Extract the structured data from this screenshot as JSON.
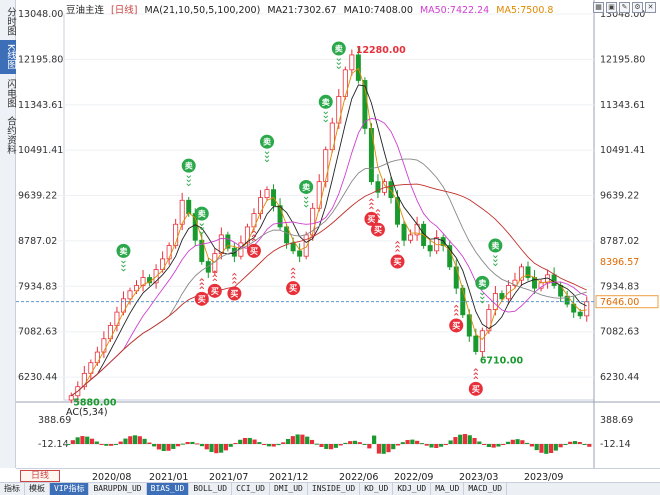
{
  "left_rail": {
    "tabs": [
      {
        "label": "分时图",
        "active": false
      },
      {
        "label": "K线图",
        "active": true
      },
      {
        "label": "闪电图",
        "active": false
      },
      {
        "label": "合约资料",
        "active": false
      }
    ]
  },
  "legend": {
    "symbol": "豆油主连",
    "period": "[日线]",
    "ma_params": "MA(21,10,50,5,100,200)",
    "ma21": "MA21:7302.67",
    "ma10": "MA10:7408.00",
    "ma50": "MA50:7422.24",
    "ma5": "MA5:7500.8"
  },
  "colors": {
    "up": "#e8303a",
    "down": "#1a9a2e",
    "ma21": "#222222",
    "ma10": "#222222",
    "ma50": "#d040d0",
    "ma5": "#e08a00",
    "ma100": "#888888",
    "ma200": "#c0302a",
    "sell_badge": "#2aa84a",
    "buy_badge": "#e8303a",
    "price_line": "#4a86c8",
    "current_price_box": "#f0a040"
  },
  "chart_data": {
    "type": "candlestick",
    "y_ticks": [
      "13048.00",
      "12195.80",
      "11343.61",
      "10491.41",
      "9639.22",
      "8787.02",
      "7934.83",
      "7082.63",
      "6230.44"
    ],
    "ylim": [
      5800,
      13048
    ],
    "x_ticks": [
      "2020/08",
      "2021/01",
      "2021/07",
      "2021/12",
      "2022/06",
      "2022/09",
      "2023/03",
      "2023/09"
    ],
    "annotations": {
      "high": {
        "label": "12280.00",
        "value": 12280
      },
      "low_2020": {
        "label": "5880.00",
        "value": 5880
      },
      "low_2023": {
        "label": "6710.00",
        "value": 6710
      },
      "ma_tag": {
        "label": "8396.57",
        "value": 8396.57
      },
      "current_price": {
        "label": "7646.00",
        "value": 7646
      }
    },
    "close_series": [
      5880,
      6050,
      6300,
      6500,
      6700,
      6950,
      7200,
      7450,
      7700,
      7850,
      7950,
      8100,
      8000,
      8250,
      8450,
      8700,
      9100,
      9550,
      9300,
      8800,
      8400,
      8200,
      8550,
      8900,
      8650,
      8500,
      8750,
      9050,
      9300,
      9600,
      9750,
      9450,
      9050,
      8750,
      8600,
      8500,
      8900,
      9400,
      9900,
      10500,
      11000,
      11500,
      12000,
      12280,
      11800,
      10900,
      9900,
      9700,
      9900,
      9600,
      9100,
      8800,
      8900,
      9100,
      8700,
      8600,
      8850,
      8700,
      8300,
      7900,
      7400,
      7000,
      6710,
      7100,
      7500,
      7800,
      7700,
      7950,
      8050,
      8300,
      8100,
      7900,
      8000,
      8150,
      7950,
      7750,
      7600,
      7450,
      7380,
      7646
    ],
    "signals": [
      {
        "type": "sell",
        "idx": 8,
        "label": "卖"
      },
      {
        "type": "sell",
        "idx": 18,
        "label": "卖"
      },
      {
        "type": "sell",
        "idx": 20,
        "label": "卖"
      },
      {
        "type": "buy",
        "idx": 20,
        "label": "买"
      },
      {
        "type": "buy",
        "idx": 22,
        "label": "买"
      },
      {
        "type": "buy",
        "idx": 25,
        "label": "买"
      },
      {
        "type": "sell",
        "idx": 30,
        "label": "卖"
      },
      {
        "type": "buy",
        "idx": 28,
        "label": "买"
      },
      {
        "type": "buy",
        "idx": 34,
        "label": "买"
      },
      {
        "type": "sell",
        "idx": 36,
        "label": "卖"
      },
      {
        "type": "sell",
        "idx": 39,
        "label": "卖"
      },
      {
        "type": "sell",
        "idx": 41,
        "label": "卖"
      },
      {
        "type": "buy",
        "idx": 46,
        "label": "买"
      },
      {
        "type": "buy",
        "idx": 47,
        "label": "买"
      },
      {
        "type": "buy",
        "idx": 50,
        "label": "买"
      },
      {
        "type": "buy",
        "idx": 59,
        "label": "买"
      },
      {
        "type": "buy",
        "idx": 62,
        "label": "买"
      },
      {
        "type": "sell",
        "idx": 65,
        "label": "卖"
      },
      {
        "type": "sell",
        "idx": 63,
        "label": "卖"
      }
    ],
    "osc": {
      "title": "AC(5,34)",
      "ticks": [
        "388.69",
        "-12.14"
      ]
    }
  },
  "time_axis": {
    "period_button": "日线"
  },
  "bottom_tabs": [
    {
      "label": "指标",
      "active": false
    },
    {
      "label": "模板",
      "active": false
    },
    {
      "label": "VIP指标",
      "active": true
    },
    {
      "label": "BARUPDN_UD",
      "active": false
    },
    {
      "label": "BIAS_UD",
      "active": true
    },
    {
      "label": "BOLL_UD",
      "active": false
    },
    {
      "label": "CCI_UD",
      "active": false
    },
    {
      "label": "DMI_UD",
      "active": false
    },
    {
      "label": "INSIDE_UD",
      "active": false
    },
    {
      "label": "KD_UD",
      "active": false
    },
    {
      "label": "KDJ_UD",
      "active": false
    },
    {
      "label": "MA_UD",
      "active": false
    },
    {
      "label": "MACD_UD",
      "active": false
    }
  ]
}
